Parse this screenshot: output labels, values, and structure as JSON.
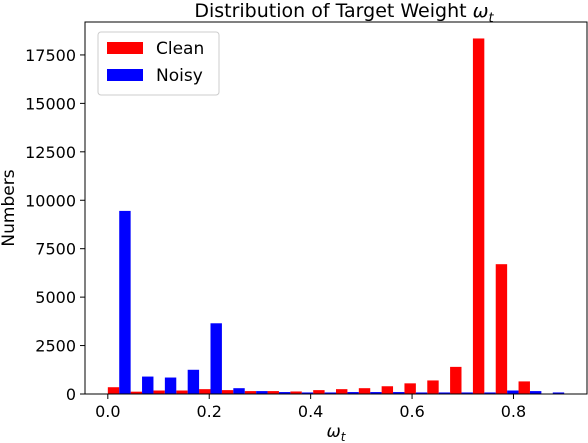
{
  "chart_data": {
    "type": "bar",
    "title": "Distribution of Target Weight ",
    "title_symbol": "ω",
    "title_subscript": "t",
    "xlabel_symbol": "ω",
    "xlabel_subscript": "t",
    "ylabel": "Numbers",
    "x_ticks": [
      0.0,
      0.2,
      0.4,
      0.6,
      0.8
    ],
    "x_tick_labels": [
      "0.0",
      "0.2",
      "0.4",
      "0.6",
      "0.8"
    ],
    "y_ticks": [
      0,
      2500,
      5000,
      7500,
      10000,
      12500,
      15000,
      17500
    ],
    "y_tick_labels": [
      "0",
      "2500",
      "5000",
      "7500",
      "10000",
      "12500",
      "15000",
      "17500"
    ],
    "xlim": [
      -0.045,
      0.945
    ],
    "ylim": [
      0,
      19200
    ],
    "bin_width": 0.045,
    "bin_starts": [
      0.0,
      0.045,
      0.09,
      0.135,
      0.18,
      0.225,
      0.27,
      0.315,
      0.36,
      0.405,
      0.45,
      0.495,
      0.54,
      0.585,
      0.63,
      0.675,
      0.72,
      0.765,
      0.81,
      0.855
    ],
    "series": [
      {
        "name": "Clean",
        "color": "#ff0000",
        "values": [
          350,
          120,
          180,
          180,
          250,
          200,
          150,
          150,
          130,
          200,
          250,
          300,
          400,
          550,
          700,
          1400,
          18350,
          6700,
          650,
          0
        ]
      },
      {
        "name": "Noisy",
        "color": "#0000ff",
        "values": [
          9450,
          900,
          850,
          1250,
          3650,
          300,
          150,
          100,
          80,
          80,
          100,
          100,
          100,
          80,
          80,
          80,
          80,
          180,
          150,
          80
        ]
      }
    ],
    "legend_position": "top-left",
    "grid": false
  }
}
